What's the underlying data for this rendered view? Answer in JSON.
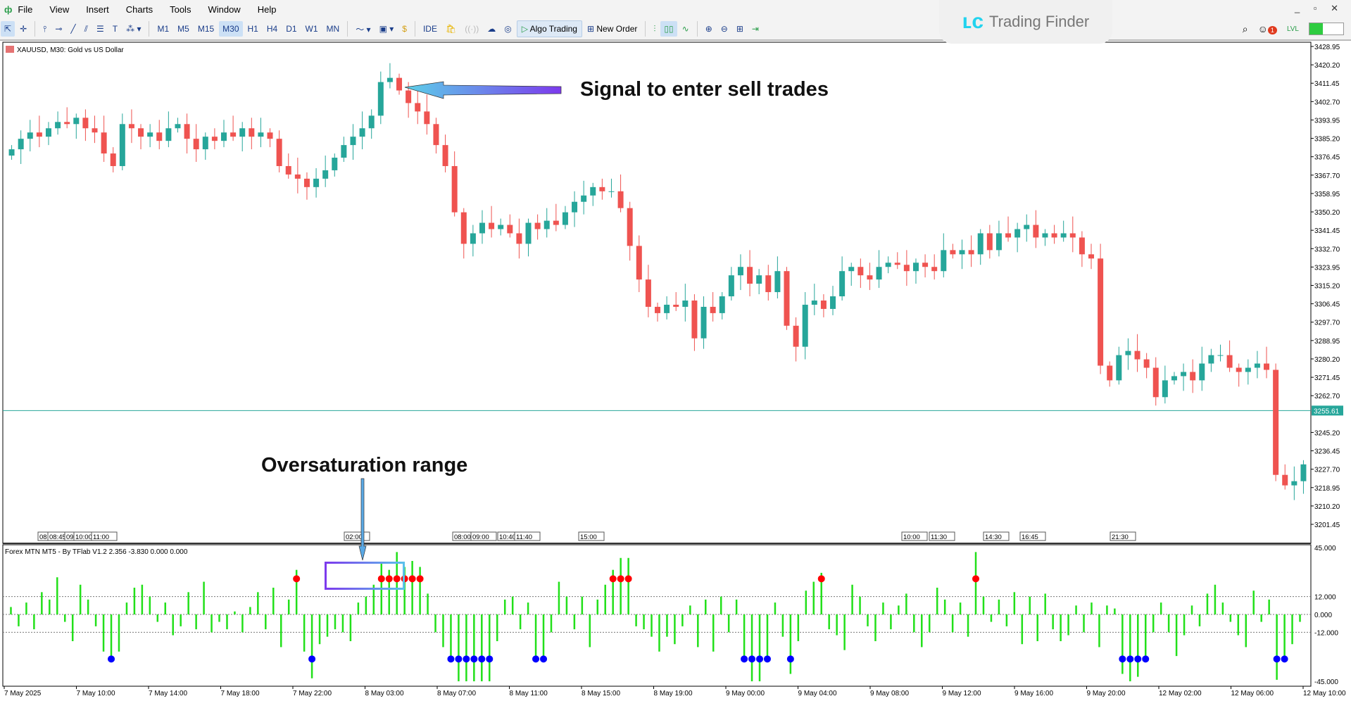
{
  "menu": {
    "items": [
      "File",
      "View",
      "Insert",
      "Charts",
      "Tools",
      "Window",
      "Help"
    ]
  },
  "toolbar": {
    "timeframes": [
      "M1",
      "M5",
      "M15",
      "M30",
      "H1",
      "H4",
      "D1",
      "W1",
      "MN"
    ],
    "active_timeframe": "M30",
    "ide": "IDE",
    "algo_trading": "Algo Trading",
    "new_order": "New Order"
  },
  "brand": {
    "name": "Trading Finder"
  },
  "chart": {
    "title": "XAUUSD, M30:  Gold vs US Dollar",
    "current_price": "3255.61",
    "bull_color": "#26a69a",
    "bear_color": "#ef5350",
    "price_labels": [
      "3428.95",
      "3420.20",
      "3411.45",
      "3402.70",
      "3393.95",
      "3385.20",
      "3376.45",
      "3367.70",
      "3358.95",
      "3350.20",
      "3341.45",
      "3332.70",
      "3323.95",
      "3315.20",
      "3306.45",
      "3297.70",
      "3288.95",
      "3280.20",
      "3271.45",
      "3262.70",
      "3245.20",
      "3236.45",
      "3227.70",
      "3218.95",
      "3210.20",
      "3201.45"
    ],
    "session_tags": [
      "08",
      "08:45",
      "09",
      "10:00",
      "11:00",
      "02:00",
      "08:00",
      "09:00",
      "10:40",
      "11:40",
      "15:00",
      "10:00",
      "11:30",
      "14:30",
      "16:45",
      "21:30"
    ],
    "closes": [
      3380,
      3385,
      3388,
      3386,
      3390,
      3393,
      3392,
      3395,
      3390,
      3388,
      3378,
      3372,
      3392,
      3390,
      3386,
      3388,
      3384,
      3390,
      3392,
      3385,
      3380,
      3386,
      3384,
      3388,
      3386,
      3390,
      3386,
      3388,
      3385,
      3372,
      3368,
      3366,
      3362,
      3366,
      3370,
      3376,
      3382,
      3386,
      3390,
      3396,
      3412,
      3414,
      3408,
      3402,
      3398,
      3392,
      3382,
      3372,
      3350,
      3335,
      3340,
      3345,
      3342,
      3344,
      3340,
      3335,
      3345,
      3342,
      3346,
      3344,
      3350,
      3355,
      3358,
      3362,
      3360,
      3360,
      3352,
      3334,
      3318,
      3305,
      3302,
      3306,
      3305,
      3308,
      3290,
      3305,
      3302,
      3310,
      3320,
      3324,
      3316,
      3320,
      3312,
      3322,
      3296,
      3286,
      3306,
      3308,
      3304,
      3310,
      3322,
      3324,
      3320,
      3318,
      3324,
      3326,
      3325,
      3322,
      3326,
      3324,
      3322,
      3332,
      3330,
      3332,
      3330,
      3340,
      3332,
      3340,
      3338,
      3342,
      3344,
      3338,
      3340,
      3338,
      3340,
      3338,
      3330,
      3328,
      3277,
      3270,
      3282,
      3284,
      3280,
      3276,
      3262,
      3270,
      3272,
      3274,
      3270,
      3278,
      3282,
      3282,
      3276,
      3274,
      3276,
      3278,
      3275,
      3225,
      3220,
      3222,
      3230
    ]
  },
  "indicator": {
    "title": "Forex MTN MT5 - By TFlab V1.2 2.356 -3.830 0.000 0.000",
    "bar_color": "#22e01a",
    "overbought_color": "#ff0000",
    "oversold_color": "#0000ff",
    "levels": [
      "45.000",
      "12.000",
      "0.000",
      "-12.000",
      "-45.000"
    ],
    "values": [
      5,
      -8,
      8,
      -10,
      15,
      10,
      25,
      -5,
      -18,
      20,
      10,
      -8,
      -25,
      -30,
      -25,
      8,
      18,
      20,
      12,
      -5,
      8,
      -14,
      -8,
      15,
      -10,
      22,
      -12,
      -5,
      -10,
      2,
      -12,
      5,
      15,
      -10,
      18,
      -22,
      10,
      30,
      -25,
      -43,
      -20,
      -15,
      -10,
      -12,
      -18,
      8,
      12,
      20,
      35,
      30,
      42,
      32,
      36,
      32,
      14,
      -12,
      -22,
      -30,
      -45,
      -48,
      -48,
      -45,
      -45,
      -18,
      10,
      12,
      -10,
      8,
      -30,
      -32,
      -12,
      22,
      12,
      -10,
      12,
      -22,
      10,
      20,
      30,
      38,
      38,
      -8,
      -10,
      -15,
      -25,
      -15,
      -20,
      -8,
      6,
      -22,
      10,
      -25,
      12,
      -12,
      10,
      -30,
      -45,
      -48,
      -30,
      8,
      -15,
      -40,
      -18,
      16,
      22,
      28,
      -10,
      -14,
      -24,
      20,
      12,
      -8,
      -18,
      8,
      -10,
      6,
      14,
      -12,
      -22,
      -12,
      18,
      10,
      -12,
      8,
      -15,
      42,
      12,
      -5,
      10,
      -8,
      15,
      -20,
      12,
      -18,
      14,
      -10,
      -18,
      -14,
      6,
      -12,
      8,
      -22,
      6,
      4,
      -40,
      -50,
      -42,
      -30,
      -12,
      8,
      -12,
      -28,
      -14,
      6,
      -8,
      14,
      20,
      8,
      -5,
      -14,
      -22,
      16,
      -5,
      10,
      -44,
      -32,
      -20,
      -5
    ]
  },
  "time_labels": [
    "7 May 2025",
    "7 May 10:00",
    "7 May 14:00",
    "7 May 18:00",
    "7 May 22:00",
    "8 May 03:00",
    "8 May 07:00",
    "8 May 11:00",
    "8 May 15:00",
    "8 May 19:00",
    "9 May 00:00",
    "9 May 04:00",
    "9 May 08:00",
    "9 May 12:00",
    "9 May 16:00",
    "9 May 20:00",
    "12 May 02:00",
    "12 May 06:00",
    "12 May 10:00"
  ],
  "annotations": {
    "sell_signal": "Signal to enter sell trades",
    "oversaturation": "Oversaturation range"
  }
}
